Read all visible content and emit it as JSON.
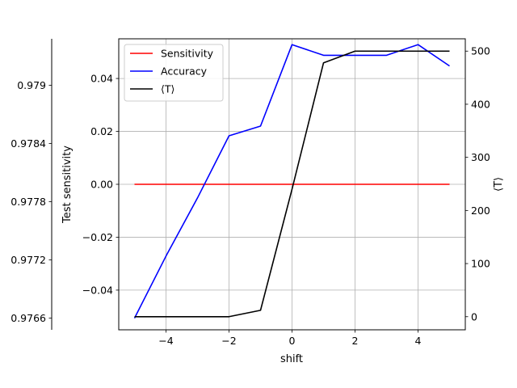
{
  "chart_data": {
    "type": "line",
    "title": "",
    "xlabel": "shift",
    "ylabel_left": "Test sensitivity",
    "ylabel_right": "⟨T⟩",
    "xlim": [
      -5.5,
      5.5
    ],
    "ylim_left": [
      -0.055,
      0.055
    ],
    "ylim_right": [
      -24.7,
      523.2
    ],
    "ylim_accuracy": [
      0.97648,
      0.97948
    ],
    "grid": true,
    "legend_position": "top-left",
    "x_ticks": [
      -4,
      -2,
      0,
      2,
      4
    ],
    "x_tick_labels": [
      "−4",
      "−2",
      "0",
      "2",
      "4"
    ],
    "left_ticks": [
      -0.04,
      -0.02,
      0.0,
      0.02,
      0.04
    ],
    "left_tick_labels": [
      "−0.04",
      "−0.02",
      "0.00",
      "0.02",
      "0.04"
    ],
    "right_ticks": [
      0,
      100,
      200,
      300,
      400,
      500
    ],
    "right_tick_labels": [
      "0",
      "100",
      "200",
      "300",
      "400",
      "500"
    ],
    "accuracy_ticks": [
      0.9766,
      0.9772,
      0.9778,
      0.9784,
      0.979
    ],
    "accuracy_tick_labels": [
      "0.9766",
      "0.9772",
      "0.9778",
      "0.9784",
      "0.979"
    ],
    "x": [
      -5,
      -4,
      -3,
      -2,
      -1,
      0,
      1,
      2,
      3,
      4,
      5
    ],
    "series": [
      {
        "name": "Sensitivity",
        "legend_label": "Sensitivity",
        "color": "#ff0000",
        "axis": "left",
        "values": [
          0,
          0,
          0,
          0,
          0,
          0,
          0,
          0,
          0,
          0,
          0
        ]
      },
      {
        "name": "Accuracy",
        "legend_label": "Accuracy",
        "color": "#0000ff",
        "axis": "accuracy",
        "values": [
          0.9766,
          0.97724,
          0.97784,
          0.97848,
          0.97858,
          0.97942,
          0.97931,
          0.97931,
          0.97931,
          0.97942,
          0.9792
        ]
      },
      {
        "name": "<T>",
        "legend_label": "⟨T⟩",
        "color": "#000000",
        "axis": "right",
        "values": [
          0,
          0,
          0,
          0,
          12,
          240,
          478,
          500,
          500,
          500,
          500
        ]
      }
    ]
  }
}
